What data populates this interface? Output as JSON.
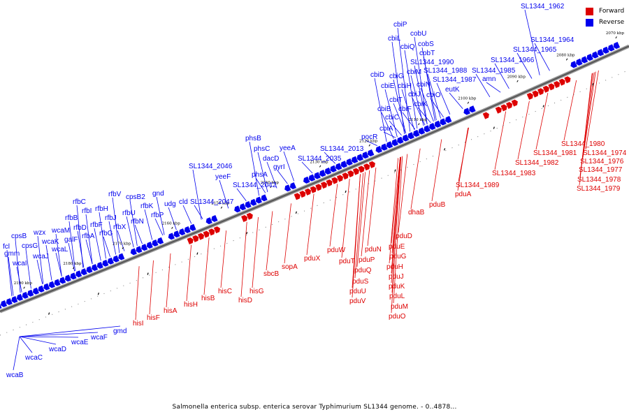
{
  "caption": "Salmonella enterica subsp. enterica serovar Typhimurium SL1344 genome. - 0..4878...",
  "legend": {
    "forward": "Forward",
    "reverse": "Reverse"
  },
  "colors": {
    "forward": "#dd0000",
    "reverse": "#0000ee",
    "backbone": "#555555"
  },
  "ticks": [
    "2190 kbp",
    "2180 kbp",
    "2170 kbp",
    "2160 kbp",
    "2150 kbp",
    "2140 kbp",
    "2130 kbp",
    "2120 kbp",
    "2110 kbp",
    "2100 kbp",
    "2090 kbp",
    "2080 kbp",
    "2070 kbp"
  ],
  "reverse_labels": [
    "fcl",
    "gmm",
    "cpsB",
    "cpsG",
    "wcaI",
    "wzx",
    "wcaJ",
    "wcaM",
    "wcaK",
    "galF",
    "wcaL",
    "rfbC",
    "rfbB",
    "rfbI",
    "rfbD",
    "rfbH",
    "rfbF",
    "rfbA",
    "rfbG",
    "rfbV",
    "rfbJ",
    "rfbU",
    "rfbX",
    "cpsB2",
    "rfbN",
    "rfbK",
    "gnd",
    "rfbP",
    "udg",
    "cld",
    "SL1344_2046",
    "SL1344_2047",
    "yeeF",
    "phsB",
    "phsC",
    "SL1344_2042",
    "phsA",
    "dacD",
    "yeeA",
    "gyrI",
    "SL1344_2035",
    "SL1344_2013",
    "pocR",
    "cbiA",
    "cbiD",
    "cbiB",
    "cbiC",
    "cbiE",
    "cbiG",
    "cbiT",
    "cbiF",
    "cbiH",
    "cbiL",
    "cbiQ",
    "cbiJ",
    "cbiK",
    "cbiM",
    "cbiN",
    "cbiP",
    "cbiO",
    "cobU",
    "cobS",
    "cobT",
    "SL1344_1990",
    "SL1344_1988",
    "SL1344_1987",
    "eutK",
    "SL1344_1985",
    "amn",
    "SL1344_1966",
    "SL1344_1965",
    "SL1344_1964",
    "SL1344_1962"
  ],
  "forward_labels": [
    "hisI",
    "hisF",
    "hisA",
    "hisH",
    "hisB",
    "hisC",
    "hisD",
    "hisG",
    "sbcB",
    "sopA",
    "pduX",
    "pduW",
    "pduT",
    "pduU",
    "pduV",
    "pduS",
    "pduQ",
    "pduP",
    "pduN",
    "pduH",
    "pduG",
    "pduE",
    "pduD",
    "pduJ",
    "pduK",
    "pduL",
    "pduM",
    "pduO",
    "dhaB",
    "pduB",
    "pduA",
    "SL1344_1989",
    "SL1344_1983",
    "SL1344_1982",
    "SL1344_1981",
    "SL1344_1980",
    "SL1344_1974",
    "SL1344_1976",
    "SL1344_1977",
    "SL1344_1978",
    "SL1344_1979"
  ],
  "reverse_bottom_labels": [
    "gmd",
    "wcaF",
    "wcaE",
    "wcaD",
    "wcaC",
    "wcaB"
  ]
}
